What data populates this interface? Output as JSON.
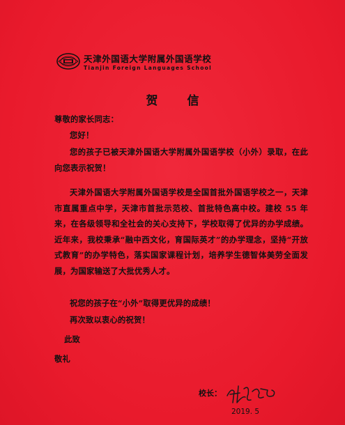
{
  "header": {
    "school_name_cn": "天津外国语大学附属外国语学校",
    "school_name_en": "Tianjin Foreign Languages School",
    "logo_icon": "school-emblem-icon"
  },
  "letter": {
    "title": "贺 信",
    "salutation": "尊敬的家长同志：",
    "greeting": "您好！",
    "paragraph1": "您的孩子已被天津外国语大学附属外国语学校（小外）录取，在此向您表示祝贺！",
    "paragraph2": "天津外国语大学附属外国语学校是全国首批外国语学校之一，天津市直属重点中学，天津市首批示范校、首批特色高中校。建校 55 年来，在各级领导和全社会的关心支持下，学校取得了优异的办学成绩。近年来，我校秉承“融中西文化，育国际英才”的办学理念，坚持“开放式教育”的办学特色，落实国家课程计划，培养学生德智体美劳全面发展，为国家输送了大批优秀人才。",
    "wish1": "祝您的孩子在“小外”取得更优异的成绩！",
    "wish2": "再次致以衷心的祝贺！",
    "closing1": "此致",
    "closing2": "敬礼",
    "principal_label": "校长：",
    "date": "2019. 5"
  },
  "colors": {
    "paper": "#ec1b2e",
    "ink": "#111111"
  }
}
